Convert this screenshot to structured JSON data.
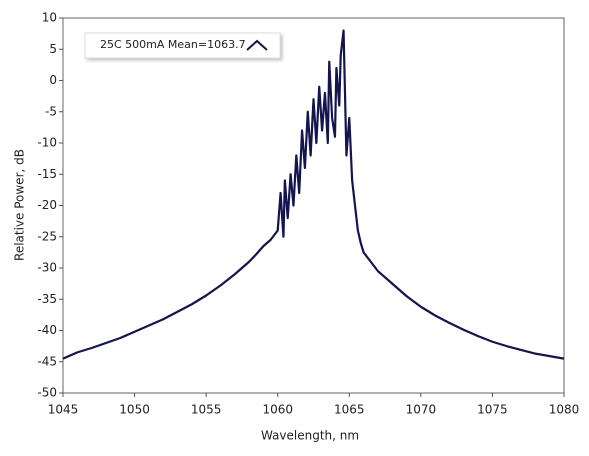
{
  "chart_data": {
    "type": "line",
    "x_label": "Wavelength, nm",
    "y_label": "Relative Power, dB",
    "x": [
      1045,
      1046,
      1047,
      1048,
      1049,
      1050,
      1051,
      1052,
      1053,
      1054,
      1055,
      1056,
      1057,
      1058,
      1058.5,
      1059,
      1059.5,
      1060,
      1060.2,
      1060.4,
      1060.5,
      1060.7,
      1060.9,
      1061.1,
      1061.3,
      1061.5,
      1061.7,
      1061.9,
      1062.1,
      1062.3,
      1062.5,
      1062.7,
      1062.9,
      1063.1,
      1063.3,
      1063.5,
      1063.6,
      1063.8,
      1064,
      1064.1,
      1064.3,
      1064.4,
      1064.6,
      1064.8,
      1065,
      1065.2,
      1065.4,
      1065.6,
      1065.8,
      1066,
      1066.5,
      1067,
      1068,
      1069,
      1070,
      1071,
      1072,
      1073,
      1074,
      1075,
      1076,
      1077,
      1078,
      1079,
      1080
    ],
    "series": [
      {
        "name": "25C 500mA Mean=1063.7",
        "color": "#14144f",
        "values": [
          -44.5,
          -43.5,
          -42.8,
          -42,
          -41.2,
          -40.2,
          -39.2,
          -38.2,
          -37,
          -35.8,
          -34.4,
          -32.8,
          -31,
          -29,
          -27.8,
          -26.5,
          -25.5,
          -24,
          -18,
          -25,
          -16,
          -22,
          -15,
          -20,
          -12,
          -18,
          -8,
          -14,
          -5,
          -12,
          -3,
          -10,
          -1,
          -8,
          -2,
          -10,
          3,
          -6,
          -9,
          2,
          -4,
          4,
          8,
          -12,
          -6,
          -16,
          -20,
          -24,
          -26,
          -27.5,
          -29,
          -30.5,
          -32.5,
          -34.5,
          -36.2,
          -37.6,
          -38.8,
          -39.9,
          -40.9,
          -41.8,
          -42.5,
          -43.1,
          -43.7,
          -44.1,
          -44.5
        ]
      }
    ],
    "xlim": [
      1045,
      1080
    ],
    "xticks": [
      1045,
      1050,
      1055,
      1060,
      1065,
      1070,
      1075,
      1080
    ],
    "ylim": [
      -50,
      10
    ],
    "yticks": [
      10,
      5,
      0,
      -5,
      -10,
      -15,
      -20,
      -25,
      -30,
      -35,
      -40,
      -45,
      -50
    ],
    "legend": "upper left"
  }
}
